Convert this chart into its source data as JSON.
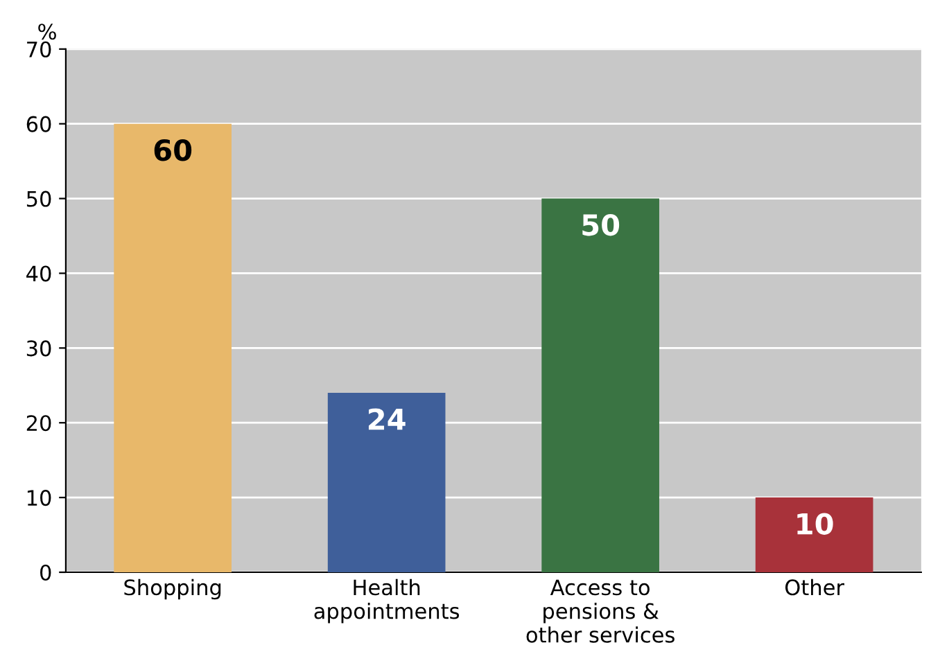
{
  "chart_data": {
    "type": "bar",
    "ylabel": "%",
    "categories": [
      "Shopping",
      "Health\nappointments",
      "Access to\npensions &\nother services",
      "Other"
    ],
    "values": [
      60,
      24,
      50,
      10
    ],
    "colors": [
      "#e8b86a",
      "#3f5f9a",
      "#3a7443",
      "#a8323a"
    ],
    "ylim": [
      0,
      70
    ],
    "yticks": [
      0,
      10,
      20,
      30,
      40,
      50,
      60,
      70
    ],
    "grid": "y",
    "data_labels": true
  }
}
